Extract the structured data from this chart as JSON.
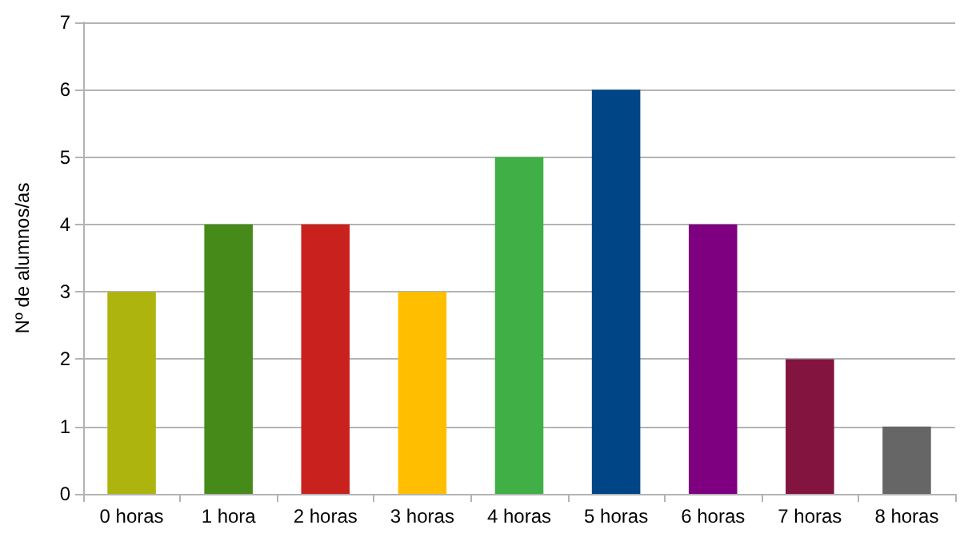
{
  "chart_data": {
    "type": "bar",
    "ylabel": "Nº de alumnos/as",
    "categories": [
      "0 horas",
      "1 hora",
      "2 horas",
      "3 horas",
      "4 horas",
      "5 horas",
      "6 horas",
      "7 horas",
      "8 horas"
    ],
    "values": [
      3,
      4,
      4,
      3,
      5,
      6,
      4,
      2,
      1
    ],
    "colors": [
      "#aeb40e",
      "#468a1a",
      "#c9211e",
      "#ffbf00",
      "#3faf46",
      "#004586",
      "#7e0080",
      "#83133f",
      "#666666"
    ],
    "ylim": [
      0,
      7
    ],
    "yticks": [
      0,
      1,
      2,
      3,
      4,
      5,
      6,
      7
    ],
    "grid": "y"
  }
}
